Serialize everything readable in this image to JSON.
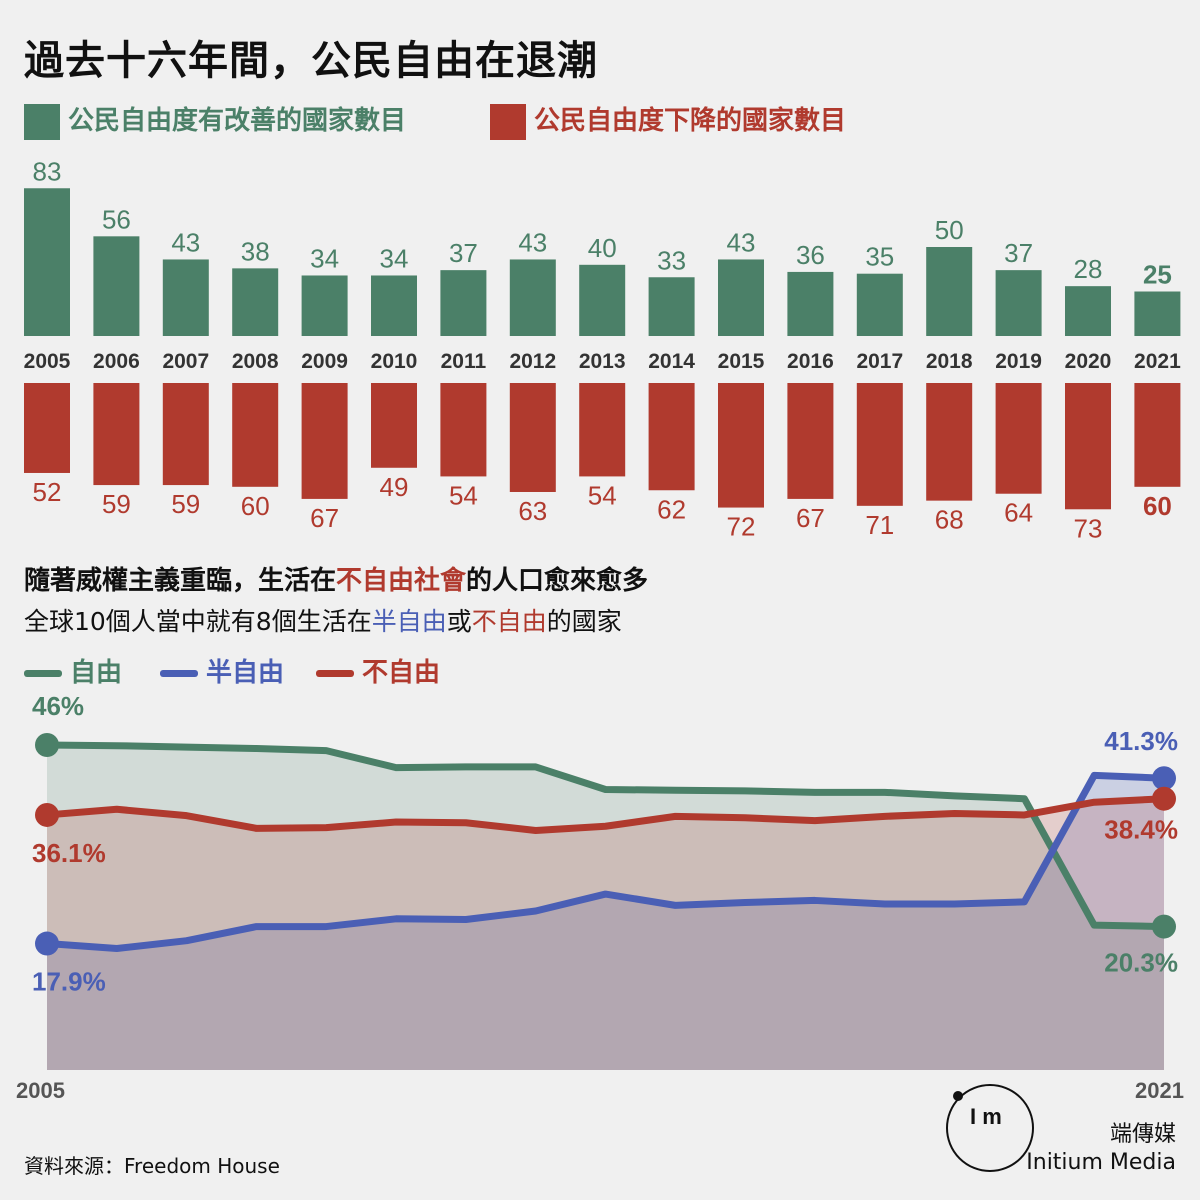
{
  "title": "過去十六年間，公民自由在退潮",
  "legend_top": {
    "improved": "公民自由度有改善的國家數目",
    "declined": "公民自由度下降的國家數目"
  },
  "subtitle": {
    "line1_pre": "隨著威權主義重臨，生活在",
    "line1_hl": "不自由社會",
    "line1_post": "的人口愈來愈多",
    "line2_pre": "全球10個人當中就有8個生活在",
    "line2_semi": "半自由",
    "line2_mid": "或",
    "line2_notfree": "不自由",
    "line2_post": "的國家"
  },
  "legend_line": {
    "free": "自由",
    "semi": "半自由",
    "notfree": "不自由"
  },
  "source": "資料來源：Freedom House",
  "brand": {
    "logo_text": "I m",
    "name_zh": "端傳媒",
    "name_en": "Initium Media"
  },
  "colors": {
    "green": "#4b8068",
    "red": "#b03a2e",
    "blue": "#4a5fb5",
    "bg": "#f0f0f0"
  },
  "chart_data": [
    {
      "type": "bar",
      "categories": [
        "2005",
        "2006",
        "2007",
        "2008",
        "2009",
        "2010",
        "2011",
        "2012",
        "2013",
        "2014",
        "2015",
        "2016",
        "2017",
        "2018",
        "2019",
        "2020",
        "2021"
      ],
      "series": [
        {
          "name": "公民自由度有改善的國家數目",
          "values": [
            83,
            56,
            43,
            38,
            34,
            34,
            37,
            43,
            40,
            33,
            43,
            36,
            35,
            50,
            37,
            28,
            25
          ]
        },
        {
          "name": "公民自由度下降的國家數目",
          "values": [
            52,
            59,
            59,
            60,
            67,
            49,
            54,
            63,
            54,
            62,
            72,
            67,
            71,
            68,
            64,
            73,
            60
          ]
        }
      ]
    },
    {
      "type": "area",
      "x": [
        2005,
        2006,
        2007,
        2008,
        2009,
        2010,
        2011,
        2012,
        2013,
        2014,
        2015,
        2016,
        2017,
        2018,
        2019,
        2020,
        2021
      ],
      "xlabels": [
        "2005",
        "2021"
      ],
      "series": [
        {
          "name": "自由",
          "values": [
            46,
            45.9,
            45.7,
            45.5,
            45.2,
            42.8,
            42.9,
            42.9,
            39.7,
            39.6,
            39.5,
            39.3,
            39.3,
            38.8,
            38.4,
            20.5,
            20.3
          ],
          "start_label": "46%",
          "end_label": "20.3%"
        },
        {
          "name": "半自由",
          "values": [
            17.9,
            17.2,
            18.3,
            20.3,
            20.3,
            21.4,
            21.3,
            22.5,
            24.9,
            23.3,
            23.7,
            24.0,
            23.5,
            23.5,
            23.8,
            41.7,
            41.3
          ],
          "start_label": "17.9%",
          "end_label": "41.3%"
        },
        {
          "name": "不自由",
          "values": [
            36.1,
            36.9,
            36.0,
            34.2,
            34.3,
            35.1,
            35.0,
            33.9,
            34.5,
            35.9,
            35.7,
            35.3,
            35.9,
            36.3,
            36.1,
            37.9,
            38.4
          ],
          "start_label": "36.1%",
          "end_label": "38.4%"
        }
      ]
    }
  ]
}
